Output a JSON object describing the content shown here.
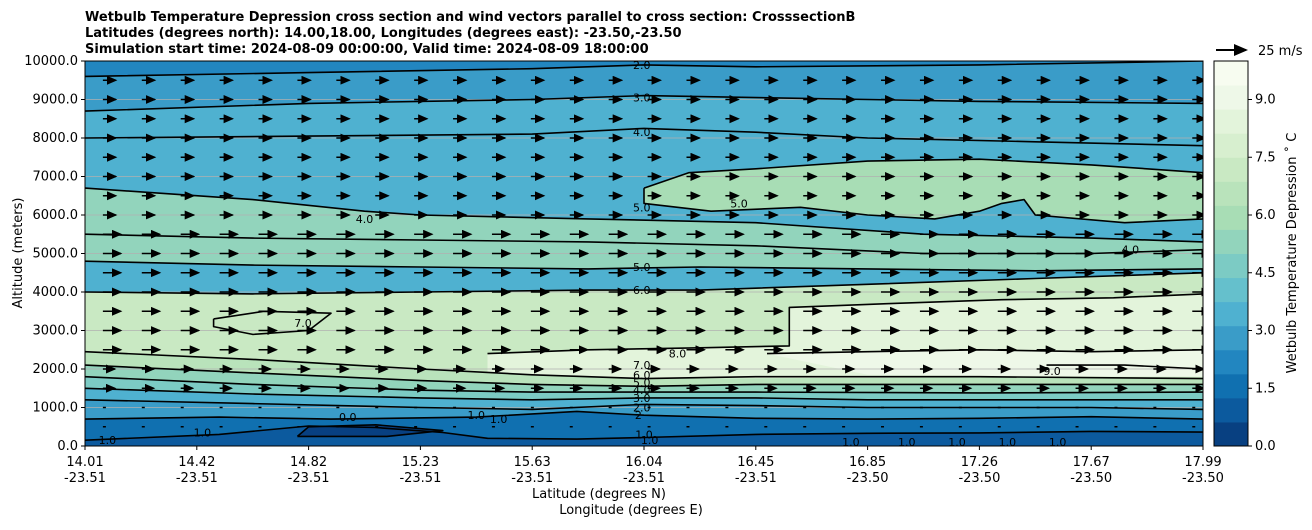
{
  "chart_data": {
    "type": "heatmap",
    "title_lines": [
      "Wetbulb Temperature Depression cross section and wind vectors parallel to cross section: CrosssectionB",
      "Latitudes (degrees north): 14.00,18.00, Longitudes (degrees east): -23.50,-23.50",
      "Simulation start time: 2024-08-09 00:00:00, Valid time: 2024-08-09 18:00:00"
    ],
    "ylabel": "Altitude (meters)",
    "xlabel_lat": "Latitude (degrees N)",
    "xlabel_lon": "Longitude (degrees E)",
    "ylim": [
      0,
      10000
    ],
    "xlim": [
      0,
      10
    ],
    "y_ticks": [
      {
        "value": 0,
        "label": "0.0"
      },
      {
        "value": 1000,
        "label": "1000.0"
      },
      {
        "value": 2000,
        "label": "2000.0"
      },
      {
        "value": 3000,
        "label": "3000.0"
      },
      {
        "value": 4000,
        "label": "4000.0"
      },
      {
        "value": 5000,
        "label": "5000.0"
      },
      {
        "value": 6000,
        "label": "6000.0"
      },
      {
        "value": 7000,
        "label": "7000.0"
      },
      {
        "value": 8000,
        "label": "8000.0"
      },
      {
        "value": 9000,
        "label": "9000.0"
      },
      {
        "value": 10000,
        "label": "10000.0"
      }
    ],
    "x_ticks": [
      {
        "value": 0,
        "lat": "14.01",
        "lon": "-23.51"
      },
      {
        "value": 1,
        "lat": "14.42",
        "lon": "-23.51"
      },
      {
        "value": 2,
        "lat": "14.82",
        "lon": "-23.51"
      },
      {
        "value": 3,
        "lat": "15.23",
        "lon": "-23.51"
      },
      {
        "value": 4,
        "lat": "15.63",
        "lon": "-23.51"
      },
      {
        "value": 5,
        "lat": "16.04",
        "lon": "-23.51"
      },
      {
        "value": 6,
        "lat": "16.45",
        "lon": "-23.51"
      },
      {
        "value": 7,
        "lat": "16.85",
        "lon": "-23.50"
      },
      {
        "value": 8,
        "lat": "17.26",
        "lon": "-23.50"
      },
      {
        "value": 9,
        "lat": "17.67",
        "lon": "-23.50"
      },
      {
        "value": 10,
        "lat": "17.99",
        "lon": "-23.50"
      }
    ],
    "colorbar": {
      "label": "Wetbulb Temperature Depression $^\\circ$C",
      "label_display": "Wetbulb Temperature Depression ˚ C",
      "min": 0,
      "max": 10,
      "ticks": [
        {
          "value": 0,
          "label": "0.0"
        },
        {
          "value": 1.5,
          "label": "1.5"
        },
        {
          "value": 3.0,
          "label": "3.0"
        },
        {
          "value": 4.5,
          "label": "4.5"
        },
        {
          "value": 6.0,
          "label": "6.0"
        },
        {
          "value": 7.5,
          "label": "7.5"
        },
        {
          "value": 9.0,
          "label": "9.0"
        }
      ],
      "colors": [
        "#084081",
        "#0c5a9e",
        "#1070b0",
        "#2286c0",
        "#3a9cc8",
        "#4fb1d0",
        "#65c0cc",
        "#7ccbc4",
        "#92d4bc",
        "#a8ddb5",
        "#b9e3bb",
        "#c9e9c3",
        "#d7efcf",
        "#e3f4db",
        "#eef8e8",
        "#f7fcf0"
      ]
    },
    "wind_reference": {
      "label": "25 m/s",
      "speed": 25
    },
    "contours": [
      {
        "level": 1.0,
        "points": [
          [
            0,
            150
          ],
          [
            1.2,
            300
          ],
          [
            2,
            520
          ],
          [
            2.6,
            480
          ],
          [
            3.2,
            350
          ],
          [
            3.6,
            200
          ],
          [
            4.4,
            180
          ],
          [
            5.0,
            220
          ],
          [
            6.0,
            300
          ],
          [
            7.0,
            330
          ],
          [
            8.0,
            340
          ],
          [
            9.0,
            380
          ],
          [
            10,
            360
          ]
        ]
      },
      {
        "level": 2.0,
        "points": [
          [
            0,
            700
          ],
          [
            1.2,
            750
          ],
          [
            2.2,
            700
          ],
          [
            3.5,
            750
          ],
          [
            4.4,
            900
          ],
          [
            5.0,
            800
          ],
          [
            6.0,
            720
          ],
          [
            7.0,
            700
          ],
          [
            8.0,
            720
          ],
          [
            9.0,
            760
          ],
          [
            10,
            700
          ]
        ]
      },
      {
        "level": 3.0,
        "points": [
          [
            0,
            1200
          ],
          [
            1.5,
            1100
          ],
          [
            3.0,
            1000
          ],
          [
            4.0,
            950
          ],
          [
            5.0,
            1080
          ],
          [
            6.0,
            1050
          ],
          [
            7.0,
            1000
          ],
          [
            8.0,
            1000
          ],
          [
            9.0,
            1000
          ],
          [
            10,
            950
          ]
        ]
      },
      {
        "level": 4.0,
        "points": [
          [
            0,
            1500
          ],
          [
            1.5,
            1350
          ],
          [
            3.0,
            1250
          ],
          [
            4.0,
            1200
          ],
          [
            5.0,
            1250
          ],
          [
            6.0,
            1250
          ],
          [
            7.0,
            1200
          ],
          [
            8.0,
            1200
          ],
          [
            10,
            1200
          ]
        ]
      },
      {
        "level": 5.0,
        "points": [
          [
            0,
            1800
          ],
          [
            1.5,
            1600
          ],
          [
            3.0,
            1450
          ],
          [
            4.0,
            1400
          ],
          [
            5.0,
            1400
          ],
          [
            6.0,
            1400
          ],
          [
            8.0,
            1380
          ],
          [
            10,
            1400
          ]
        ]
      },
      {
        "level": 6.0,
        "points": [
          [
            0,
            2100
          ],
          [
            1.5,
            1900
          ],
          [
            3.0,
            1700
          ],
          [
            4.0,
            1600
          ],
          [
            5.0,
            1550
          ],
          [
            6.0,
            1600
          ],
          [
            8.0,
            1600
          ],
          [
            10,
            1600
          ]
        ]
      },
      {
        "level": 7.0,
        "points": [
          [
            0,
            2450
          ],
          [
            1.5,
            2250
          ],
          [
            3.0,
            2000
          ],
          [
            4.0,
            1850
          ],
          [
            5.0,
            1750
          ],
          [
            6.0,
            1800
          ],
          [
            8.0,
            1800
          ],
          [
            10,
            1750
          ]
        ]
      },
      {
        "level": 7.0,
        "points": [
          [
            1.15,
            3300
          ],
          [
            1.6,
            3500
          ],
          [
            2.2,
            3450
          ],
          [
            2.0,
            3000
          ],
          [
            1.5,
            2900
          ],
          [
            1.15,
            3100
          ],
          [
            1.15,
            3300
          ]
        ]
      },
      {
        "level": 8.0,
        "points": [
          [
            3.6,
            2400
          ],
          [
            4.5,
            2500
          ],
          [
            5.5,
            2550
          ],
          [
            6.3,
            2600
          ],
          [
            6.3,
            3600
          ],
          [
            7.2,
            3700
          ],
          [
            8.2,
            3800
          ],
          [
            9.2,
            3850
          ],
          [
            10,
            3950
          ]
        ]
      },
      {
        "level": 9.0,
        "points": [
          [
            6.1,
            2400
          ],
          [
            7.0,
            2450
          ],
          [
            8.0,
            2500
          ],
          [
            9.0,
            2450
          ],
          [
            10,
            2500
          ]
        ]
      },
      {
        "level": 9.0,
        "points": [
          [
            8.6,
            2100
          ],
          [
            9.3,
            2100
          ],
          [
            10,
            2000
          ]
        ]
      },
      {
        "level": 6.0,
        "points": [
          [
            0,
            4000
          ],
          [
            1.5,
            3950
          ],
          [
            3.0,
            4000
          ],
          [
            4.5,
            4050
          ],
          [
            5.5,
            4050
          ],
          [
            7.0,
            4200
          ],
          [
            8.5,
            4350
          ],
          [
            10,
            4500
          ]
        ]
      },
      {
        "level": 5.0,
        "points": [
          [
            0,
            4800
          ],
          [
            1.5,
            4700
          ],
          [
            3.0,
            4650
          ],
          [
            4.5,
            4600
          ],
          [
            5.5,
            4650
          ],
          [
            7.0,
            4600
          ],
          [
            8.5,
            4550
          ],
          [
            10,
            4600
          ]
        ]
      },
      {
        "level": 5.0,
        "points": [
          [
            5.0,
            6700
          ],
          [
            5.4,
            7100
          ],
          [
            6.0,
            7200
          ],
          [
            7.0,
            7400
          ],
          [
            8.0,
            7450
          ],
          [
            9.0,
            7300
          ],
          [
            10,
            7100
          ],
          [
            10,
            5900
          ],
          [
            9.3,
            5800
          ],
          [
            8.5,
            6000
          ],
          [
            8.4,
            6400
          ],
          [
            8.2,
            6300
          ],
          [
            8.0,
            6100
          ],
          [
            7.6,
            5900
          ],
          [
            7.0,
            6000
          ],
          [
            6.4,
            6200
          ],
          [
            5.6,
            6100
          ],
          [
            5.0,
            6300
          ],
          [
            5.0,
            6700
          ]
        ]
      },
      {
        "level": 4.0,
        "points": [
          [
            0,
            6700
          ],
          [
            1.5,
            6400
          ],
          [
            2.5,
            6100
          ],
          [
            3.0,
            6000
          ],
          [
            4.5,
            5900
          ],
          [
            6.0,
            5800
          ],
          [
            7.5,
            5500
          ],
          [
            9.0,
            5400
          ],
          [
            10,
            5300
          ]
        ]
      },
      {
        "level": 4.0,
        "points": [
          [
            0,
            5500
          ],
          [
            1.5,
            5400
          ],
          [
            3.0,
            5350
          ],
          [
            4.5,
            5300
          ],
          [
            6.0,
            5200
          ],
          [
            7.5,
            5000
          ],
          [
            9.0,
            5000
          ],
          [
            10,
            5100
          ]
        ]
      },
      {
        "level": 4.0,
        "points": [
          [
            0,
            8000
          ],
          [
            2.0,
            8050
          ],
          [
            4.0,
            8100
          ],
          [
            5.0,
            8250
          ],
          [
            6.0,
            8150
          ],
          [
            7.0,
            8000
          ],
          [
            8.5,
            7900
          ],
          [
            10,
            7800
          ]
        ]
      },
      {
        "level": 3.0,
        "points": [
          [
            0,
            8700
          ],
          [
            2.0,
            8900
          ],
          [
            4.0,
            9000
          ],
          [
            5.0,
            9100
          ],
          [
            6.0,
            9050
          ],
          [
            8.0,
            8950
          ],
          [
            10,
            8900
          ]
        ]
      },
      {
        "level": 2.0,
        "points": [
          [
            0,
            9600
          ],
          [
            2.0,
            9700
          ],
          [
            4.0,
            9800
          ],
          [
            5.0,
            9900
          ],
          [
            6.0,
            9850
          ],
          [
            8.0,
            9900
          ],
          [
            10,
            10000
          ]
        ]
      },
      {
        "level": 0.0,
        "points": [
          [
            1.9,
            250
          ],
          [
            2.7,
            250
          ],
          [
            3.2,
            400
          ],
          [
            2.6,
            550
          ],
          [
            2.0,
            500
          ],
          [
            1.9,
            250
          ]
        ]
      }
    ],
    "contour_labels": [
      {
        "text": "2.0",
        "x": 4.98,
        "y": 9900
      },
      {
        "text": "3.0",
        "x": 4.98,
        "y": 9050
      },
      {
        "text": "4.0",
        "x": 4.98,
        "y": 8150
      },
      {
        "text": "5.0",
        "x": 4.98,
        "y": 6200
      },
      {
        "text": "5.0",
        "x": 5.85,
        "y": 6300
      },
      {
        "text": "4.0",
        "x": 2.5,
        "y": 5900
      },
      {
        "text": "4.0",
        "x": 9.35,
        "y": 5100
      },
      {
        "text": "5.0",
        "x": 4.98,
        "y": 4650
      },
      {
        "text": "6.0",
        "x": 4.98,
        "y": 4050
      },
      {
        "text": "7.0",
        "x": 1.95,
        "y": 3200
      },
      {
        "text": "8.0",
        "x": 5.3,
        "y": 2400
      },
      {
        "text": "7.0",
        "x": 4.98,
        "y": 2100
      },
      {
        "text": "6.0",
        "x": 4.98,
        "y": 1850
      },
      {
        "text": "5.0",
        "x": 4.98,
        "y": 1650
      },
      {
        "text": "4.0",
        "x": 4.98,
        "y": 1450
      },
      {
        "text": "3.0",
        "x": 4.98,
        "y": 1250
      },
      {
        "text": "2.0",
        "x": 4.98,
        "y": 1000
      },
      {
        "text": "9.0",
        "x": 8.65,
        "y": 1950
      },
      {
        "text": "0.0",
        "x": 2.35,
        "y": 750
      },
      {
        "text": "1.0",
        "x": 3.5,
        "y": 800
      },
      {
        "text": "1.0",
        "x": 3.7,
        "y": 700
      },
      {
        "text": "1.0",
        "x": 1.05,
        "y": 350
      },
      {
        "text": "1.0",
        "x": 0.2,
        "y": 150
      },
      {
        "text": "1.0",
        "x": 5.0,
        "y": 300
      },
      {
        "text": "1.0",
        "x": 5.05,
        "y": 150
      },
      {
        "text": "1.0",
        "x": 6.85,
        "y": 100
      },
      {
        "text": "1.0",
        "x": 7.35,
        "y": 100
      },
      {
        "text": "1.0",
        "x": 7.8,
        "y": 100
      },
      {
        "text": "1.0",
        "x": 8.25,
        "y": 100
      },
      {
        "text": "1.0",
        "x": 8.7,
        "y": 100
      },
      {
        "text": "2",
        "x": 4.95,
        "y": 800
      }
    ]
  }
}
